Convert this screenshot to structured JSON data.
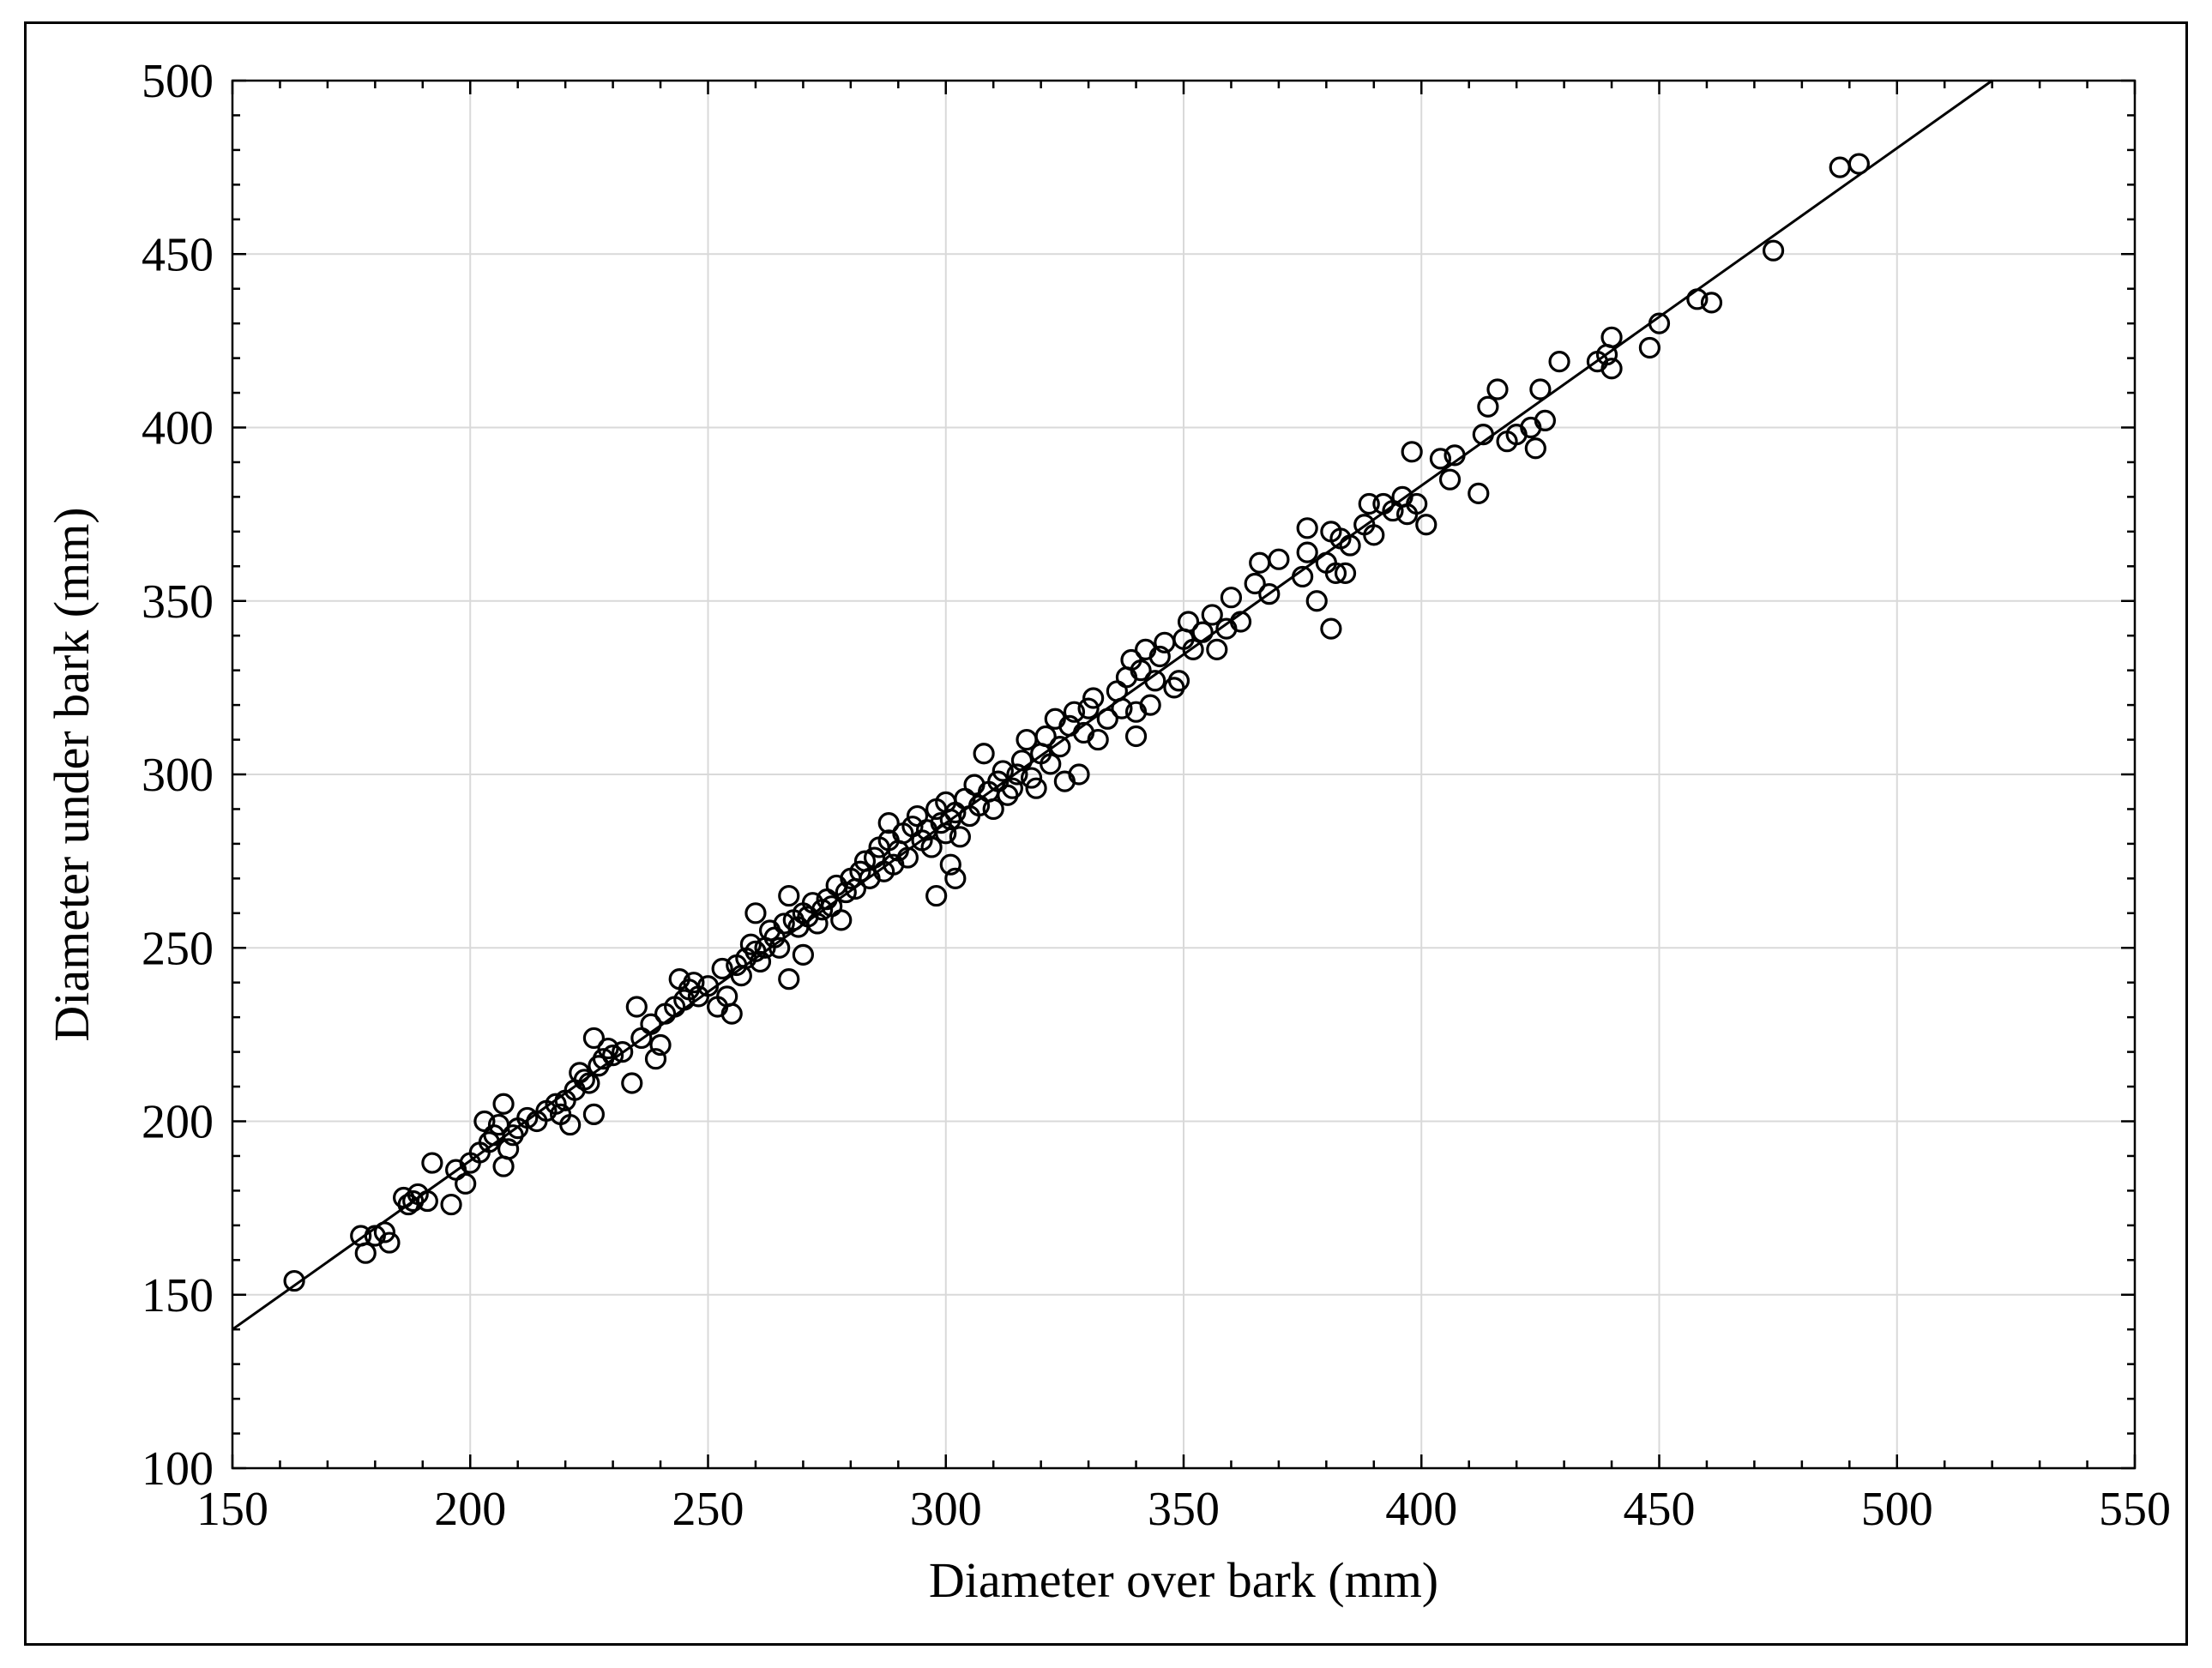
{
  "chart_data": {
    "type": "scatter",
    "title": "",
    "xlabel": "Diameter over bark (mm)",
    "ylabel": "Diameter under bark (mm)",
    "xlim": [
      150,
      550
    ],
    "ylim": [
      100,
      500
    ],
    "xticks": [
      "150",
      "200",
      "250",
      "300",
      "350",
      "400",
      "450",
      "500",
      "550"
    ],
    "yticks": [
      "100",
      "150",
      "200",
      "250",
      "300",
      "350",
      "400",
      "450",
      "500"
    ],
    "grid": true,
    "legend": "none",
    "series": [
      {
        "marker": "open-circle",
        "points": [
          [
            163,
            154
          ],
          [
            177,
            167
          ],
          [
            178,
            162
          ],
          [
            180,
            167
          ],
          [
            182,
            168
          ],
          [
            183,
            165
          ],
          [
            186,
            178
          ],
          [
            187,
            176
          ],
          [
            188,
            177
          ],
          [
            189,
            179
          ],
          [
            191,
            177
          ],
          [
            192,
            188
          ],
          [
            196,
            176
          ],
          [
            197,
            186
          ],
          [
            199,
            182
          ],
          [
            200,
            188
          ],
          [
            202,
            191
          ],
          [
            203,
            200
          ],
          [
            204,
            194
          ],
          [
            205,
            196
          ],
          [
            206,
            199
          ],
          [
            207,
            205
          ],
          [
            207,
            187
          ],
          [
            208,
            192
          ],
          [
            209,
            196
          ],
          [
            210,
            198
          ],
          [
            212,
            201
          ],
          [
            214,
            200
          ],
          [
            216,
            203
          ],
          [
            218,
            205
          ],
          [
            219,
            202
          ],
          [
            220,
            206
          ],
          [
            221,
            199
          ],
          [
            222,
            209
          ],
          [
            223,
            214
          ],
          [
            224,
            212
          ],
          [
            225,
            211
          ],
          [
            226,
            202
          ],
          [
            226,
            224
          ],
          [
            227,
            216
          ],
          [
            228,
            218
          ],
          [
            229,
            221
          ],
          [
            230,
            219
          ],
          [
            232,
            220
          ],
          [
            234,
            211
          ],
          [
            235,
            233
          ],
          [
            236,
            224
          ],
          [
            238,
            228
          ],
          [
            239,
            218
          ],
          [
            240,
            222
          ],
          [
            241,
            231
          ],
          [
            243,
            233
          ],
          [
            244,
            241
          ],
          [
            245,
            235
          ],
          [
            246,
            238
          ],
          [
            247,
            240
          ],
          [
            248,
            236
          ],
          [
            250,
            239
          ],
          [
            252,
            233
          ],
          [
            253,
            244
          ],
          [
            254,
            236
          ],
          [
            255,
            231
          ],
          [
            256,
            245
          ],
          [
            257,
            242
          ],
          [
            258,
            247
          ],
          [
            259,
            251
          ],
          [
            260,
            249
          ],
          [
            260,
            260
          ],
          [
            261,
            246
          ],
          [
            262,
            250
          ],
          [
            263,
            255
          ],
          [
            264,
            253
          ],
          [
            265,
            250
          ],
          [
            266,
            257
          ],
          [
            267,
            241
          ],
          [
            267,
            265
          ],
          [
            268,
            258
          ],
          [
            269,
            256
          ],
          [
            270,
            248
          ],
          [
            270,
            260
          ],
          [
            271,
            259
          ],
          [
            272,
            263
          ],
          [
            273,
            257
          ],
          [
            274,
            261
          ],
          [
            275,
            264
          ],
          [
            276,
            262
          ],
          [
            277,
            268
          ],
          [
            278,
            258
          ],
          [
            279,
            266
          ],
          [
            280,
            270
          ],
          [
            281,
            267
          ],
          [
            282,
            272
          ],
          [
            283,
            275
          ],
          [
            284,
            270
          ],
          [
            285,
            276
          ],
          [
            286,
            279
          ],
          [
            287,
            272
          ],
          [
            288,
            281
          ],
          [
            288,
            286
          ],
          [
            289,
            274
          ],
          [
            290,
            278
          ],
          [
            291,
            283
          ],
          [
            292,
            276
          ],
          [
            293,
            285
          ],
          [
            294,
            288
          ],
          [
            295,
            281
          ],
          [
            296,
            284
          ],
          [
            297,
            279
          ],
          [
            298,
            265
          ],
          [
            298,
            290
          ],
          [
            299,
            286
          ],
          [
            300,
            283
          ],
          [
            300,
            292
          ],
          [
            301,
            287
          ],
          [
            301,
            274
          ],
          [
            302,
            270
          ],
          [
            302,
            289
          ],
          [
            303,
            282
          ],
          [
            304,
            293
          ],
          [
            305,
            288
          ],
          [
            306,
            297
          ],
          [
            307,
            291
          ],
          [
            308,
            306
          ],
          [
            309,
            295
          ],
          [
            310,
            290
          ],
          [
            311,
            298
          ],
          [
            312,
            301
          ],
          [
            313,
            294
          ],
          [
            314,
            296
          ],
          [
            315,
            300
          ],
          [
            316,
            304
          ],
          [
            317,
            310
          ],
          [
            318,
            299
          ],
          [
            319,
            296
          ],
          [
            320,
            306
          ],
          [
            321,
            311
          ],
          [
            322,
            303
          ],
          [
            323,
            316
          ],
          [
            324,
            308
          ],
          [
            325,
            298
          ],
          [
            326,
            314
          ],
          [
            327,
            318
          ],
          [
            328,
            300
          ],
          [
            329,
            312
          ],
          [
            330,
            319
          ],
          [
            331,
            322
          ],
          [
            332,
            310
          ],
          [
            334,
            316
          ],
          [
            336,
            324
          ],
          [
            337,
            319
          ],
          [
            338,
            328
          ],
          [
            339,
            333
          ],
          [
            340,
            318
          ],
          [
            340,
            311
          ],
          [
            341,
            330
          ],
          [
            342,
            336
          ],
          [
            343,
            320
          ],
          [
            344,
            327
          ],
          [
            345,
            334
          ],
          [
            346,
            338
          ],
          [
            348,
            325
          ],
          [
            349,
            327
          ],
          [
            350,
            339
          ],
          [
            351,
            344
          ],
          [
            352,
            336
          ],
          [
            354,
            341
          ],
          [
            356,
            346
          ],
          [
            357,
            336
          ],
          [
            359,
            342
          ],
          [
            360,
            351
          ],
          [
            362,
            344
          ],
          [
            365,
            355
          ],
          [
            366,
            361
          ],
          [
            368,
            352
          ],
          [
            370,
            362
          ],
          [
            375,
            357
          ],
          [
            376,
            364
          ],
          [
            376,
            371
          ],
          [
            378,
            350
          ],
          [
            380,
            361
          ],
          [
            381,
            342
          ],
          [
            381,
            370
          ],
          [
            382,
            358
          ],
          [
            383,
            368
          ],
          [
            384,
            358
          ],
          [
            385,
            366
          ],
          [
            388,
            372
          ],
          [
            389,
            378
          ],
          [
            390,
            369
          ],
          [
            392,
            378
          ],
          [
            394,
            376
          ],
          [
            396,
            380
          ],
          [
            397,
            375
          ],
          [
            398,
            393
          ],
          [
            399,
            378
          ],
          [
            401,
            372
          ],
          [
            404,
            391
          ],
          [
            406,
            385
          ],
          [
            407,
            392
          ],
          [
            412,
            381
          ],
          [
            413,
            398
          ],
          [
            414,
            406
          ],
          [
            416,
            411
          ],
          [
            418,
            396
          ],
          [
            420,
            398
          ],
          [
            423,
            400
          ],
          [
            424,
            394
          ],
          [
            425,
            411
          ],
          [
            426,
            402
          ],
          [
            429,
            419
          ],
          [
            437,
            419
          ],
          [
            439,
            421
          ],
          [
            440,
            426
          ],
          [
            440,
            417
          ],
          [
            448,
            423
          ],
          [
            450,
            430
          ],
          [
            458,
            437
          ],
          [
            461,
            436
          ],
          [
            474,
            451
          ],
          [
            488,
            475
          ],
          [
            492,
            476
          ]
        ]
      }
    ],
    "fit_line": {
      "x": [
        150,
        520
      ],
      "y": [
        140,
        500
      ]
    }
  }
}
